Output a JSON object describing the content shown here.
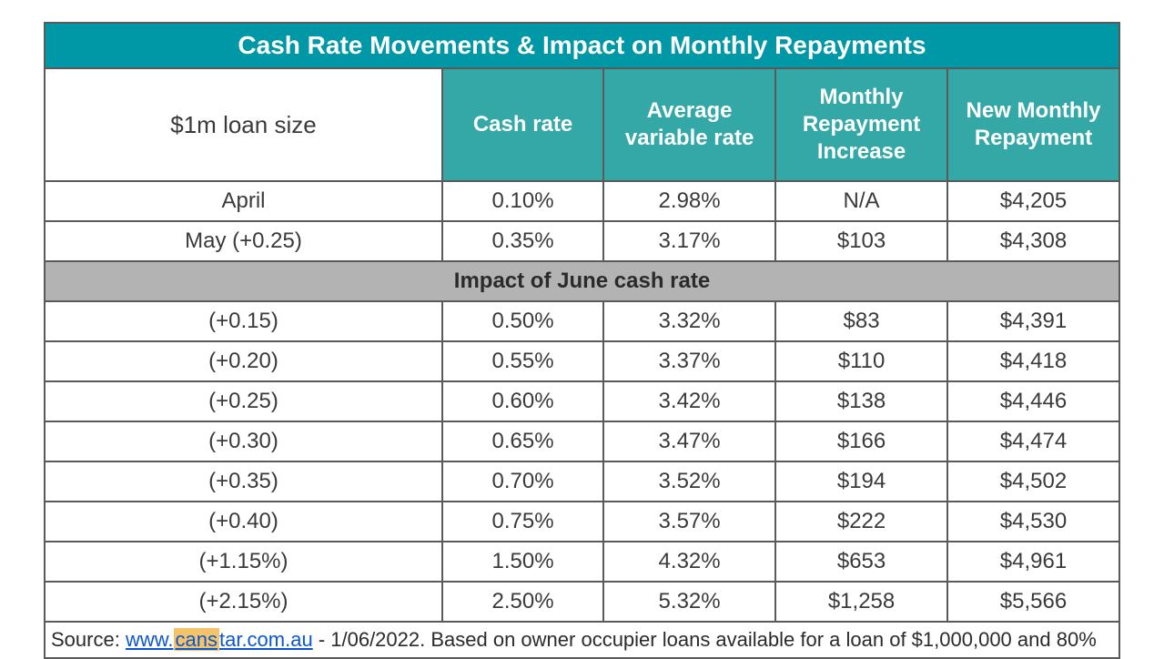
{
  "table": {
    "title": "Cash Rate Movements & Impact on Monthly Repayments",
    "header": {
      "loan_size": "$1m loan size",
      "cash_rate": "Cash rate",
      "avg_var_rate": "Average variable rate",
      "monthly_increase": "Monthly Repayment Increase",
      "new_monthly": "New Monthly Repayment"
    },
    "top_rows": [
      {
        "label": "April",
        "cash_rate": "0.10%",
        "avg_var": "2.98%",
        "increase": "N/A",
        "new_monthly": "$4,205"
      },
      {
        "label": "May (+0.25)",
        "cash_rate": "0.35%",
        "avg_var": "3.17%",
        "increase": "$103",
        "new_monthly": "$4,308"
      }
    ],
    "section_label": "Impact of June cash rate",
    "scenario_rows": [
      {
        "label": "(+0.15)",
        "cash_rate": "0.50%",
        "avg_var": "3.32%",
        "increase": "$83",
        "new_monthly": "$4,391"
      },
      {
        "label": "(+0.20)",
        "cash_rate": "0.55%",
        "avg_var": "3.37%",
        "increase": "$110",
        "new_monthly": "$4,418"
      },
      {
        "label": "(+0.25)",
        "cash_rate": "0.60%",
        "avg_var": "3.42%",
        "increase": "$138",
        "new_monthly": "$4,446"
      },
      {
        "label": "(+0.30)",
        "cash_rate": "0.65%",
        "avg_var": "3.47%",
        "increase": "$166",
        "new_monthly": "$4,474"
      },
      {
        "label": "(+0.35)",
        "cash_rate": "0.70%",
        "avg_var": "3.52%",
        "increase": "$194",
        "new_monthly": "$4,502"
      },
      {
        "label": "(+0.40)",
        "cash_rate": "0.75%",
        "avg_var": "3.57%",
        "increase": "$222",
        "new_monthly": "$4,530"
      },
      {
        "label": "(+1.15%)",
        "cash_rate": "1.50%",
        "avg_var": "4.32%",
        "increase": "$653",
        "new_monthly": "$4,961"
      },
      {
        "label": "(+2.15%)",
        "cash_rate": "2.50%",
        "avg_var": "5.32%",
        "increase": "$1,258",
        "new_monthly": "$5,566"
      }
    ],
    "source": {
      "prefix": "Source: ",
      "link_pre": "www.",
      "link_hl": "cans",
      "link_post": "tar.com.au",
      "suffix": " - 1/06/2022. Based on owner occupier loans available for a loan of $1,000,000 and 80%"
    }
  },
  "style": {
    "title_bg": "#0097a7",
    "header_bg": "#33a8a7",
    "section_bg": "#b3b3b3",
    "border_color": "#5a5a5a",
    "text_color": "#3a3a3a",
    "highlight_bg": "#f6c468",
    "link_color": "#0b57d0",
    "page_bg": "#ffffff",
    "title_fontsize": 28,
    "header_fontsize": 24,
    "cell_fontsize": 24,
    "source_fontsize": 22,
    "col_widths_pct": [
      37,
      15,
      16,
      16,
      16
    ]
  }
}
